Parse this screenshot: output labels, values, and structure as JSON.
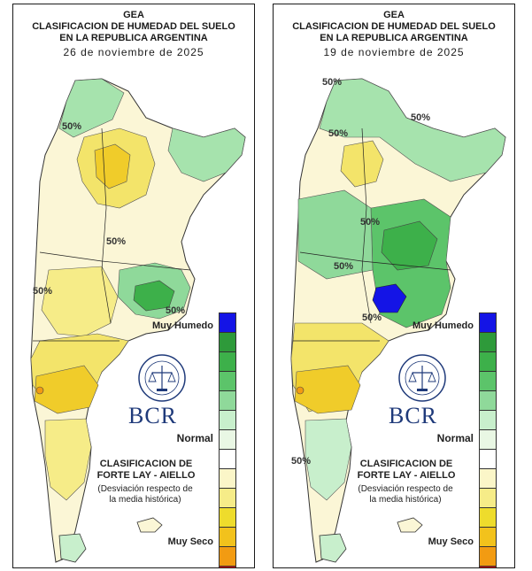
{
  "panels": [
    {
      "header": {
        "line1": "GEA",
        "line2": "CLASIFICACION DE HUMEDAD DEL SUELO",
        "line3": "EN LA REPUBLICA ARGENTINA",
        "date": "26 de noviembre de 2025"
      },
      "percent_label": "50%"
    },
    {
      "header": {
        "line1": "GEA",
        "line2": "CLASIFICACION DE HUMEDAD DEL SUELO",
        "line3": "EN LA REPUBLICA ARGENTINA",
        "date": "19 de noviembre de 2025"
      },
      "percent_label": "50%"
    }
  ],
  "legend": {
    "top_label": "Muy Humedo",
    "mid_label": "Normal",
    "bottom_label": "Muy Seco",
    "classification_line1": "CLASIFICACION DE",
    "classification_line2": "FORTE LAY - AIELLO",
    "deviation_line1": "(Desviación respecto de",
    "deviation_line2": "la media histórica)",
    "colors": [
      "#1414e6",
      "#2e9a3a",
      "#3db04a",
      "#5cc46a",
      "#8fd99a",
      "#c8efcc",
      "#e9f7e4",
      "#ffffff",
      "#fbf6c8",
      "#f6ec88",
      "#eedc2c",
      "#f2c21c",
      "#f29b12",
      "#f00f0f"
    ]
  },
  "logo": {
    "name": "BCR"
  },
  "map_colors": {
    "wet_dark": "#2e9a3a",
    "wet": "#5cc46a",
    "wet_light": "#a6e3ad",
    "normal": "#fbf6d6",
    "dry": "#f3e46a",
    "dry_strong": "#f0cc2a",
    "very_dry": "#f29b12",
    "very_wet": "#1414e6"
  }
}
